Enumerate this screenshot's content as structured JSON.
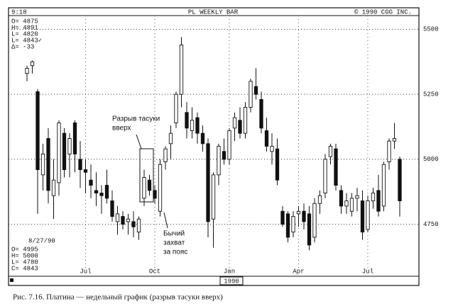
{
  "chart_data": {
    "type": "candlestick",
    "time": "9:18",
    "title": "PL WEEKLY BAR",
    "copyright": "© 1990 CGG INC.",
    "info_top": [
      "O= 4875",
      "H= 4891",
      "L= 4820",
      "L= 4843✓",
      "Δ= -33"
    ],
    "info_date": "8/27/90",
    "info_bottom": [
      "O= 4995",
      "H= 5000",
      "L= 4780",
      "C= 4843"
    ],
    "annotation_gap": [
      "Разрыв тасуки",
      "вверх"
    ],
    "annotation_belt": [
      "Бычий",
      "захват",
      "за пояс"
    ],
    "year_label": "1990",
    "caption": "Рис. 7.16. Платина — недельный график (разрыв тасуки вверх)",
    "categories": [
      null,
      null,
      null,
      null,
      null,
      null,
      null,
      null,
      null,
      null,
      null,
      "Jul",
      null,
      null,
      null,
      null,
      null,
      null,
      null,
      null,
      null,
      null,
      null,
      null,
      "Oct",
      null,
      null,
      null,
      null,
      null,
      null,
      null,
      null,
      null,
      null,
      null,
      null,
      null,
      "Jan",
      null,
      null,
      null,
      null,
      null,
      null,
      null,
      null,
      null,
      null,
      null,
      null,
      "Apr",
      null,
      null,
      null,
      null,
      null,
      null,
      null,
      null,
      null,
      null,
      null,
      null,
      "Jul",
      null,
      null,
      null,
      null,
      null,
      null
    ],
    "open": [
      5330,
      5360,
      5260,
      4940,
      5080,
      4860,
      4910,
      5100,
      5020,
      5140,
      5000,
      4960,
      4920,
      4880,
      4870,
      4900,
      4840,
      4760,
      4780,
      4760,
      4760,
      4720,
      4850,
      4920,
      4880,
      4800,
      4990,
      5060,
      5140,
      5250,
      5180,
      5110,
      5160,
      5100,
      5060,
      4770,
      4940,
      5030,
      5000,
      5120,
      5150,
      5100,
      5200,
      5280,
      5230,
      5110,
      5030,
      5040,
      4800,
      4790,
      4720,
      4790,
      4800,
      4790,
      4700,
      4830,
      4870,
      5010,
      5040,
      4880,
      4820,
      4800,
      4850,
      4840,
      4730,
      4840,
      4880,
      4820,
      4990,
      5070,
      5000
    ],
    "high": [
      5360,
      5380,
      5270,
      5060,
      5120,
      5000,
      5150,
      5120,
      5100,
      5150,
      5070,
      5000,
      4980,
      4950,
      4900,
      4960,
      4880,
      4820,
      4800,
      4790,
      4800,
      4780,
      4960,
      4940,
      4900,
      5000,
      5050,
      5130,
      5260,
      5470,
      5220,
      5200,
      5180,
      5130,
      5080,
      4950,
      5060,
      5080,
      5120,
      5180,
      5200,
      5220,
      5310,
      5350,
      5260,
      5160,
      5100,
      5080,
      4820,
      4800,
      4800,
      4820,
      4830,
      4820,
      4850,
      4880,
      5020,
      5060,
      5060,
      4900,
      4870,
      4870,
      4890,
      4880,
      4860,
      4890,
      4940,
      4990,
      5080,
      5140,
      5010
    ],
    "low": [
      5300,
      5330,
      4790,
      4880,
      4830,
      4770,
      4860,
      4930,
      4930,
      4950,
      4890,
      4870,
      4850,
      4820,
      4790,
      4830,
      4760,
      4710,
      4730,
      4710,
      4700,
      4690,
      4820,
      4860,
      4830,
      4780,
      4960,
      5000,
      5120,
      5200,
      5080,
      5080,
      5060,
      5030,
      4700,
      4660,
      4900,
      4980,
      4980,
      5070,
      5080,
      5080,
      5180,
      5230,
      5100,
      5030,
      4980,
      4900,
      4740,
      4680,
      4700,
      4740,
      4730,
      4650,
      4680,
      4790,
      4850,
      4980,
      4880,
      4790,
      4790,
      4780,
      4800,
      4690,
      4720,
      4810,
      4780,
      4800,
      4960,
      5040,
      4780
    ],
    "close": [
      5350,
      5375,
      4960,
      5020,
      4880,
      4920,
      5140,
      4960,
      5080,
      5020,
      4960,
      4950,
      4900,
      4870,
      4860,
      4850,
      4780,
      4790,
      4750,
      4770,
      4740,
      4770,
      4930,
      4880,
      4850,
      4980,
      5040,
      5100,
      5250,
      5440,
      5120,
      5150,
      5100,
      5060,
      4760,
      4940,
      5050,
      5000,
      5110,
      5160,
      5100,
      5200,
      5300,
      5250,
      5120,
      5050,
      5050,
      4920,
      4750,
      4700,
      4780,
      4800,
      4760,
      4670,
      4830,
      4860,
      5000,
      5050,
      4900,
      4820,
      4840,
      4850,
      4860,
      4720,
      4840,
      4870,
      4800,
      4980,
      5070,
      5080,
      4840
    ],
    "ylim": [
      4550,
      5580
    ],
    "yticks": [
      5500,
      5250,
      5000,
      4750
    ],
    "grid": true
  }
}
